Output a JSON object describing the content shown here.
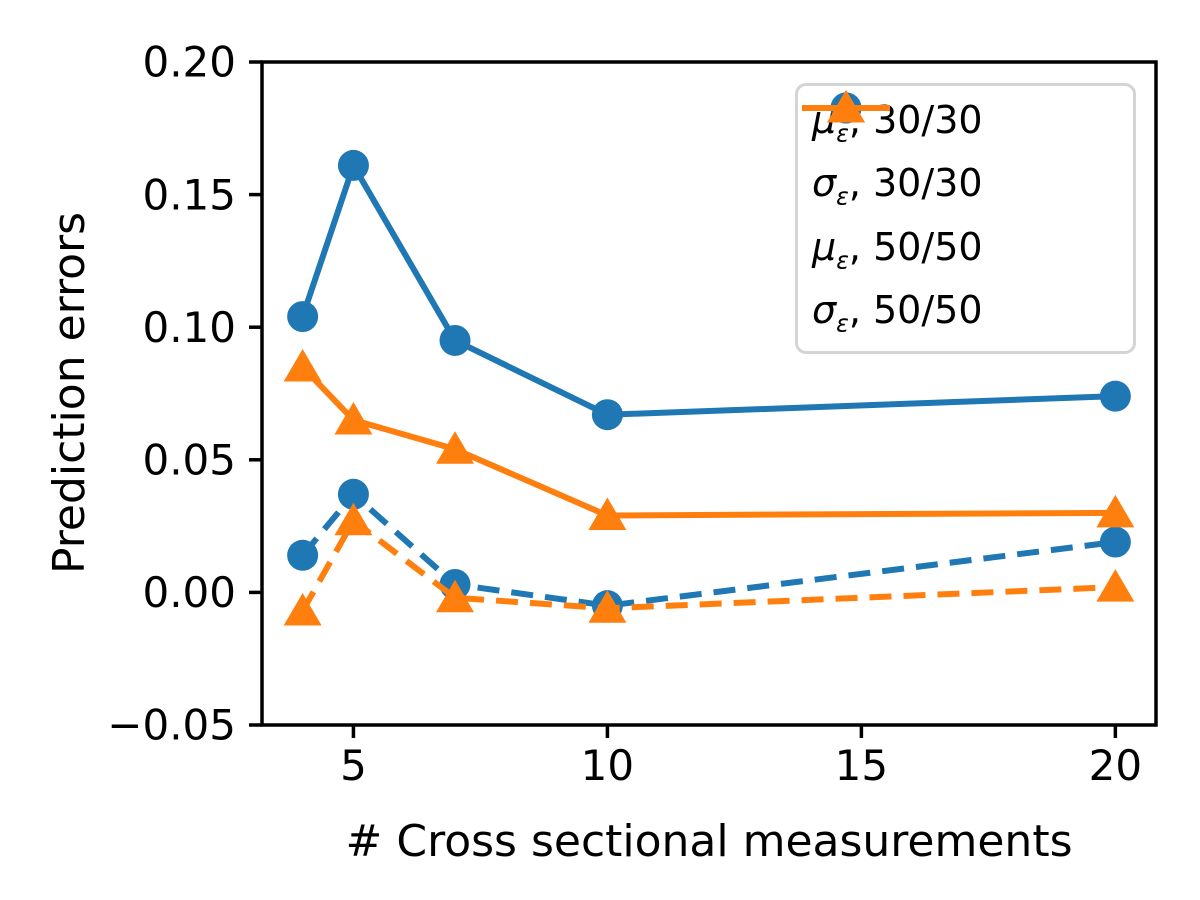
{
  "chart_data": {
    "type": "line",
    "title": "",
    "xlabel": "# Cross sectional measurements",
    "ylabel": "Prediction errors",
    "grid": false,
    "legend_position": "upper right",
    "x": [
      4,
      5,
      7,
      10,
      20
    ],
    "xlim": [
      3.2,
      20.8
    ],
    "ylim": [
      -0.05,
      0.2
    ],
    "x_ticks": [
      {
        "value": 5,
        "label": "5"
      },
      {
        "value": 10,
        "label": "10"
      },
      {
        "value": 15,
        "label": "15"
      },
      {
        "value": 20,
        "label": "20"
      }
    ],
    "y_ticks": [
      {
        "value": 0.2,
        "label": "0.20"
      },
      {
        "value": 0.15,
        "label": "0.15"
      },
      {
        "value": 0.1,
        "label": "0.10"
      },
      {
        "value": 0.05,
        "label": "0.05"
      },
      {
        "value": 0.0,
        "label": "0.00"
      },
      {
        "value": -0.05,
        "label": "−0.05"
      }
    ],
    "colors": {
      "blue": "#1f77b4",
      "orange": "#ff7f0e"
    },
    "series": [
      {
        "name": "mu-30-30",
        "label": {
          "variable": "μ",
          "subscript": "ε",
          "suffix": ", 30/30"
        },
        "color": "#1f77b4",
        "linestyle": "dashed",
        "marker": "circle",
        "values": [
          0.014,
          0.037,
          0.003,
          -0.005,
          0.019
        ]
      },
      {
        "name": "sigma-30-30",
        "label": {
          "variable": "σ",
          "subscript": "ε",
          "suffix": ", 30/30"
        },
        "color": "#1f77b4",
        "linestyle": "solid",
        "marker": "circle",
        "values": [
          0.104,
          0.161,
          0.095,
          0.067,
          0.074
        ]
      },
      {
        "name": "mu-50-50",
        "label": {
          "variable": "μ",
          "subscript": "ε",
          "suffix": ", 50/50"
        },
        "color": "#ff7f0e",
        "linestyle": "dashed",
        "marker": "triangle",
        "values": [
          -0.007,
          0.027,
          -0.002,
          -0.006,
          0.002
        ]
      },
      {
        "name": "sigma-50-50",
        "label": {
          "variable": "σ",
          "subscript": "ε",
          "suffix": ", 50/50"
        },
        "color": "#ff7f0e",
        "linestyle": "solid",
        "marker": "triangle",
        "values": [
          0.085,
          0.065,
          0.054,
          0.029,
          0.03
        ]
      }
    ]
  }
}
